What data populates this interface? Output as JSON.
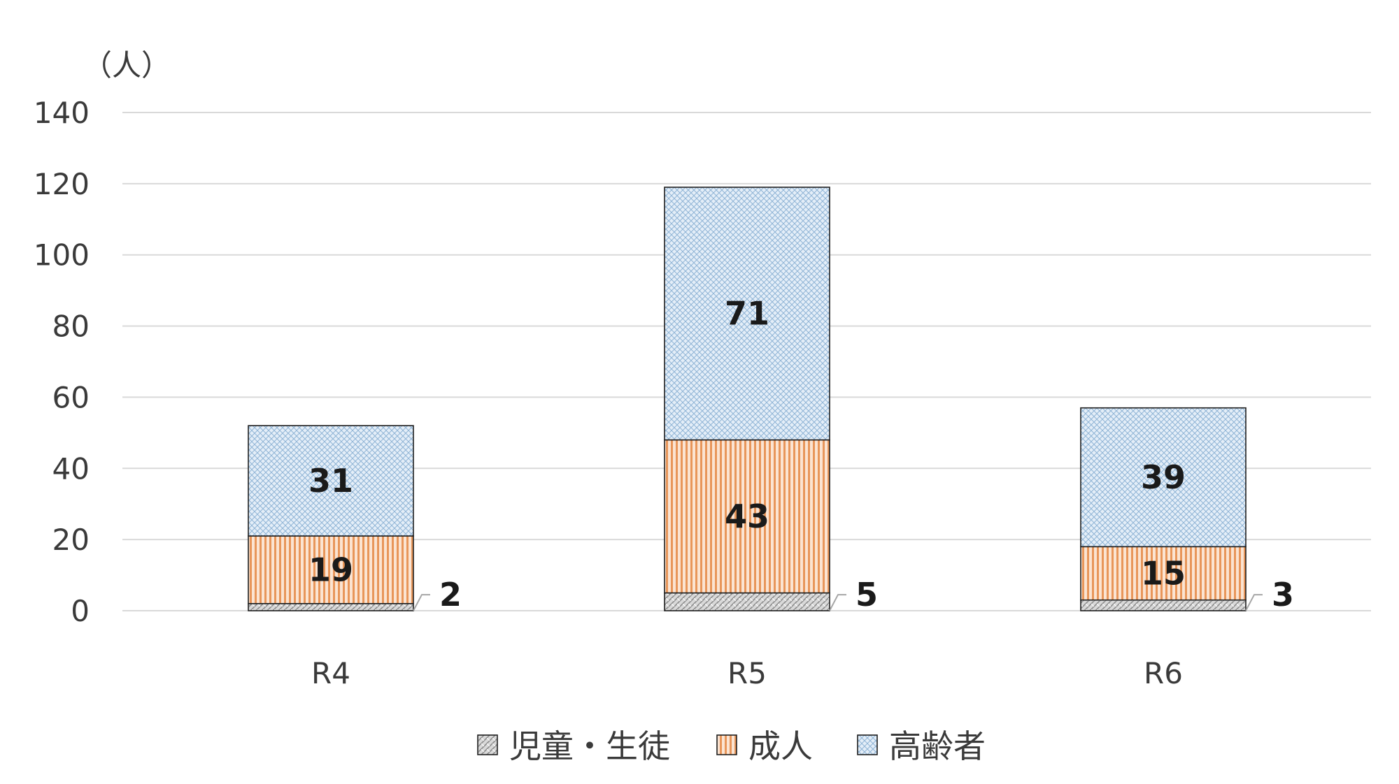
{
  "chart_data": {
    "type": "bar",
    "stacked": true,
    "unit": "（人）",
    "categories": [
      "R4",
      "R5",
      "R6"
    ],
    "series": [
      {
        "name": "児童・生徒",
        "values": [
          2,
          5,
          3
        ],
        "color": "#bfbfbf",
        "pattern": "diagonal-weave"
      },
      {
        "name": "成人",
        "values": [
          19,
          43,
          15
        ],
        "color": "#f4b183",
        "pattern": "vertical-lines"
      },
      {
        "name": "高齢者",
        "values": [
          31,
          71,
          39
        ],
        "color": "#bdd7ee",
        "pattern": "crosshatch"
      }
    ],
    "ylim": [
      0,
      140
    ],
    "yticks": [
      0,
      20,
      40,
      60,
      80,
      100,
      120,
      140
    ],
    "grid": true,
    "legend_position": "bottom"
  }
}
